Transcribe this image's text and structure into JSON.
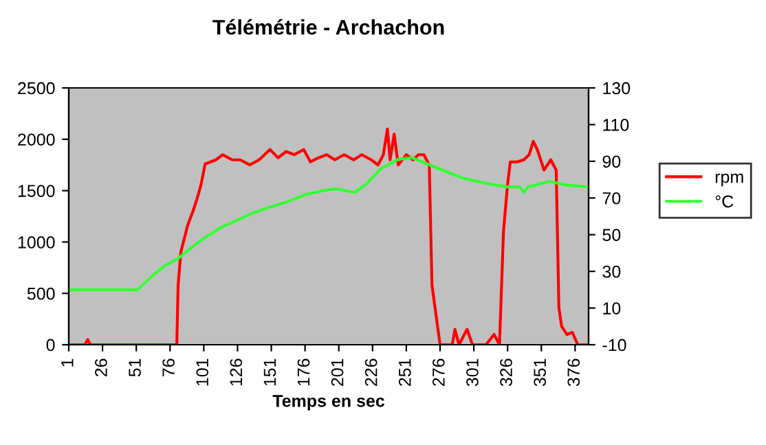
{
  "chart_data": {
    "type": "line",
    "title": "Télémétrie - Archachon",
    "xlabel": "Temps en sec",
    "xlim": [
      1,
      386
    ],
    "xticks": [
      1,
      26,
      51,
      76,
      101,
      126,
      151,
      176,
      201,
      226,
      251,
      276,
      301,
      326,
      351,
      376
    ],
    "ylim": [
      0,
      2500
    ],
    "yticks": [
      0,
      500,
      1000,
      1500,
      2000,
      2500
    ],
    "y2lim": [
      -10,
      130
    ],
    "y2ticks": [
      -10,
      10,
      30,
      50,
      70,
      90,
      110,
      130
    ],
    "grid": false,
    "legend": "right",
    "marker": "none",
    "line_style": "solid",
    "series": [
      {
        "name": "rpm",
        "color": "#ff0000",
        "x": [
          1,
          13,
          15,
          17,
          81,
          82,
          84,
          89,
          93,
          96,
          99,
          102,
          106,
          110,
          115,
          122,
          128,
          135,
          142,
          150,
          156,
          162,
          168,
          175,
          180,
          186,
          192,
          198,
          205,
          212,
          218,
          225,
          230,
          234,
          237,
          239,
          242,
          245,
          248,
          251,
          256,
          260,
          264,
          266,
          268,
          270,
          276,
          285,
          287,
          290,
          296,
          300,
          305,
          310,
          316,
          320,
          323,
          326,
          328,
          333,
          338,
          342,
          345,
          348,
          353,
          358,
          362,
          364,
          366,
          370,
          374,
          378,
          382,
          386
        ],
        "values": [
          0,
          0,
          50,
          0,
          0,
          580,
          900,
          1160,
          1300,
          1420,
          1560,
          1760,
          1780,
          1800,
          1850,
          1800,
          1800,
          1750,
          1800,
          1900,
          1820,
          1880,
          1850,
          1900,
          1780,
          1820,
          1850,
          1800,
          1850,
          1800,
          1850,
          1800,
          1750,
          1850,
          2100,
          1800,
          2050,
          1750,
          1800,
          1850,
          1800,
          1850,
          1850,
          1800,
          1750,
          580,
          0,
          0,
          150,
          0,
          150,
          0,
          0,
          0,
          100,
          0,
          1110,
          1560,
          1780,
          1780,
          1800,
          1850,
          1980,
          1900,
          1700,
          1800,
          1700,
          360,
          180,
          100,
          120,
          0,
          0,
          0
        ]
      },
      {
        "name": "°C",
        "color": "#33ff33",
        "axis": "y2",
        "x": [
          1,
          52,
          62,
          72,
          82,
          92,
          101,
          114,
          126,
          138,
          150,
          163,
          177,
          189,
          199,
          213,
          222,
          232,
          245,
          255,
          265,
          275,
          292,
          310,
          326,
          335,
          338,
          341,
          357,
          370,
          386
        ],
        "values": [
          20,
          20,
          27,
          33,
          37,
          43,
          48,
          54,
          58,
          62,
          65,
          68,
          72,
          74,
          75,
          73,
          78,
          86,
          91,
          92,
          89,
          86,
          81,
          78,
          76,
          76,
          73,
          76,
          79,
          77,
          76
        ]
      }
    ]
  }
}
